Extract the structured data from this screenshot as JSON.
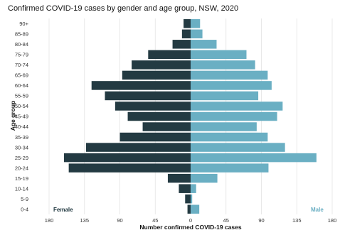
{
  "chart_data": {
    "type": "bar",
    "orientation": "horizontal-pyramid",
    "title": "Confirmed COVID-19 cases by gender and age group, NSW, 2020",
    "xlabel": "Number confirmed COVID-19 cases",
    "ylabel": "Age group",
    "categories": [
      "0-4",
      "5-9",
      "10-14",
      "15-19",
      "20-24",
      "25-29",
      "30-34",
      "35-39",
      "40-44",
      "45-49",
      "50-54",
      "55-59",
      "60-64",
      "65-69",
      "70-74",
      "75-79",
      "80-84",
      "85-89",
      "90+"
    ],
    "xlim": [
      -180,
      180
    ],
    "xticks": [
      180,
      135,
      90,
      45,
      0,
      45,
      90,
      135,
      180
    ],
    "grid": "vertical",
    "series": [
      {
        "name": "Female",
        "color": "#233a42",
        "values": [
          4,
          7,
          15,
          29,
          155,
          161,
          133,
          90,
          61,
          80,
          96,
          109,
          126,
          87,
          75,
          54,
          23,
          11,
          9
        ]
      },
      {
        "name": "Male",
        "color": "#6aafc3",
        "values": [
          11,
          2,
          7,
          34,
          99,
          160,
          120,
          98,
          84,
          110,
          117,
          86,
          103,
          98,
          82,
          71,
          33,
          15,
          12
        ]
      }
    ],
    "legend_text_colors": {
      "female": "#233a42",
      "male": "#6aafc3"
    }
  }
}
